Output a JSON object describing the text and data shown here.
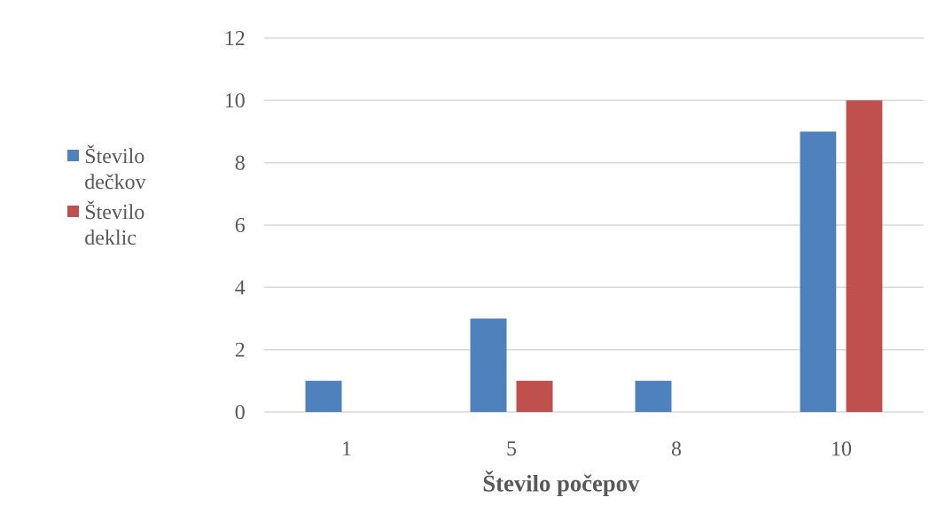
{
  "chart_data": {
    "type": "bar",
    "xlabel": "Število počepov",
    "categories": [
      "1",
      "5",
      "8",
      "10"
    ],
    "series": [
      {
        "name": "Število dečkov",
        "color": "#4f81bd",
        "values": [
          1,
          3,
          1,
          9
        ]
      },
      {
        "name": "Število deklic",
        "color": "#c0504d",
        "values": [
          0,
          1,
          0,
          10
        ]
      }
    ],
    "ylim": [
      0,
      12
    ],
    "yticks": [
      0,
      2,
      4,
      6,
      8,
      10,
      12
    ],
    "grid": "y",
    "legend": "left"
  }
}
